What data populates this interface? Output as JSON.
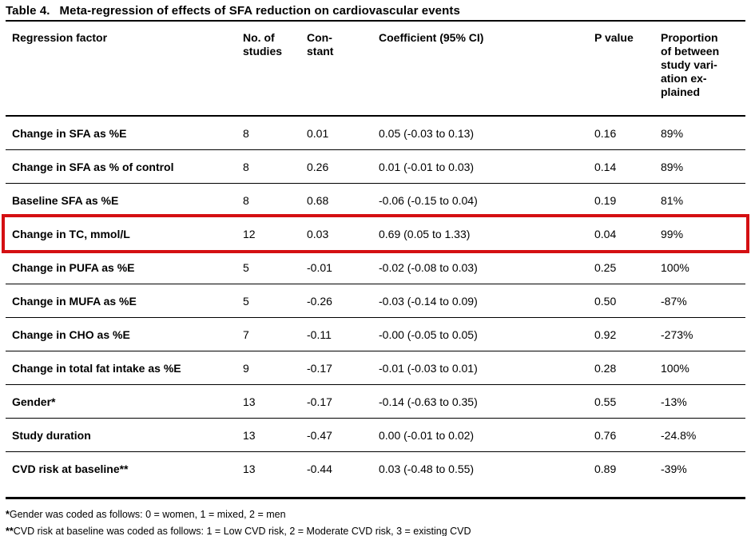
{
  "theme": {
    "highlight_color": "#d40f12",
    "rule_color": "#000000",
    "text_color": "#000000"
  },
  "caption": {
    "label": "Table 4.",
    "title": "Meta-regression of effects of SFA reduction on cardiovascular events"
  },
  "table": {
    "columns": [
      "Regression factor",
      "No. of\nstudies",
      "Con-\nstant",
      "Coefficient (95% CI)",
      "P value",
      "Proportion\nof between\nstudy vari-\nation ex-\nplained"
    ],
    "rows": [
      {
        "factor": "Change in SFA as %E",
        "n_studies": "8",
        "constant": "0.01",
        "coefficient": "0.05 (-0.03 to 0.13)",
        "p_value": "0.16",
        "proportion": "89%",
        "highlighted": false
      },
      {
        "factor": "Change in SFA as % of control",
        "n_studies": "8",
        "constant": "0.26",
        "coefficient": "0.01 (-0.01 to 0.03)",
        "p_value": "0.14",
        "proportion": "89%",
        "highlighted": false
      },
      {
        "factor": "Baseline SFA as %E",
        "n_studies": "8",
        "constant": "0.68",
        "coefficient": "-0.06 (-0.15 to 0.04)",
        "p_value": "0.19",
        "proportion": "81%",
        "highlighted": false
      },
      {
        "factor": "Change in TC, mmol/L",
        "n_studies": "12",
        "constant": "0.03",
        "coefficient": "0.69 (0.05 to 1.33)",
        "p_value": "0.04",
        "proportion": "99%",
        "highlighted": true
      },
      {
        "factor": "Change in PUFA as %E",
        "n_studies": "5",
        "constant": "-0.01",
        "coefficient": "-0.02 (-0.08 to 0.03)",
        "p_value": "0.25",
        "proportion": "100%",
        "highlighted": false
      },
      {
        "factor": "Change in MUFA as %E",
        "n_studies": "5",
        "constant": "-0.26",
        "coefficient": "-0.03 (-0.14 to 0.09)",
        "p_value": "0.50",
        "proportion": "-87%",
        "highlighted": false
      },
      {
        "factor": "Change in CHO as %E",
        "n_studies": "7",
        "constant": "-0.11",
        "coefficient": "-0.00 (-0.05 to 0.05)",
        "p_value": "0.92",
        "proportion": "-273%",
        "highlighted": false
      },
      {
        "factor": "Change in total fat intake as %E",
        "n_studies": "9",
        "constant": "-0.17",
        "coefficient": "-0.01 (-0.03 to 0.01)",
        "p_value": "0.28",
        "proportion": "100%",
        "highlighted": false
      },
      {
        "factor": "Gender*",
        "n_studies": "13",
        "constant": "-0.17",
        "coefficient": "-0.14 (-0.63 to 0.35)",
        "p_value": "0.55",
        "proportion": "-13%",
        "highlighted": false
      },
      {
        "factor": "Study duration",
        "n_studies": "13",
        "constant": "-0.47",
        "coefficient": "0.00 (-0.01 to 0.02)",
        "p_value": "0.76",
        "proportion": "-24.8%",
        "highlighted": false
      },
      {
        "factor": "CVD risk at baseline**",
        "n_studies": "13",
        "constant": "-0.44",
        "coefficient": "0.03 (-0.48 to 0.55)",
        "p_value": "0.89",
        "proportion": "-39%",
        "highlighted": false
      }
    ]
  },
  "footnotes": [
    {
      "marker": "*",
      "text": "Gender was coded as follows: 0 = women, 1 = mixed, 2 = men"
    },
    {
      "marker": "**",
      "text": "CVD risk at baseline was coded as follows: 1 = Low CVD risk, 2 = Moderate CVD risk, 3 = existing CVD"
    }
  ]
}
